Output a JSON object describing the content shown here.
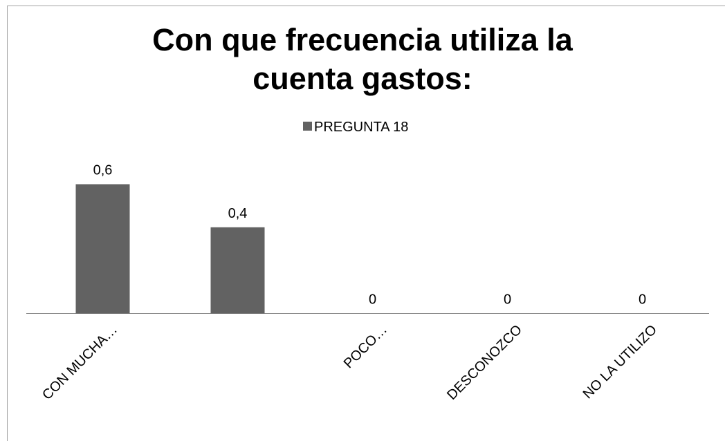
{
  "chart_data": {
    "type": "bar",
    "title": "Con que frecuencia  utiliza la cuenta gastos:",
    "categories": [
      "CON MUCHA…",
      null,
      "POCO…",
      "DESCONOZCO",
      "NO LA UTILIZO"
    ],
    "series": [
      {
        "name": "PREGUNTA 18",
        "color": "#626262",
        "values": [
          0.6,
          0.4,
          0,
          0,
          0
        ],
        "value_labels": [
          "0,6",
          "0,4",
          "0",
          "0",
          "0"
        ]
      }
    ],
    "legend": "top"
  }
}
